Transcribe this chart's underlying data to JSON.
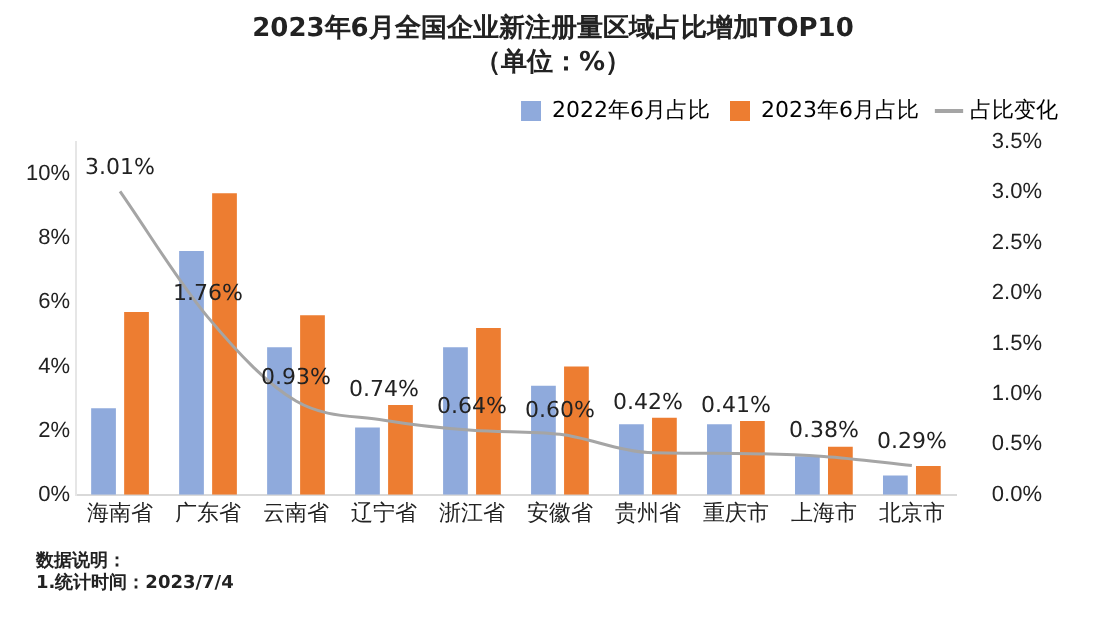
{
  "chart_data": {
    "type": "bar",
    "title": "2023年6月全国企业新注册量区域占比增加TOP10",
    "subtitle": "（单位：%）",
    "categories": [
      "海南省",
      "广东省",
      "云南省",
      "辽宁省",
      "浙江省",
      "安徽省",
      "贵州省",
      "重庆市",
      "上海市",
      "北京市"
    ],
    "series": [
      {
        "name": "2022年6月占比",
        "color": "#8faadc",
        "values": [
          2.7,
          7.6,
          4.6,
          2.1,
          4.6,
          3.4,
          2.2,
          2.2,
          1.2,
          0.6
        ]
      },
      {
        "name": "2023年6月占比",
        "color": "#ed7d31",
        "values": [
          5.7,
          9.4,
          5.6,
          2.8,
          5.2,
          4.0,
          2.4,
          2.3,
          1.5,
          0.9
        ]
      },
      {
        "name": "占比变化",
        "type": "line",
        "axis": "y2",
        "color": "#a5a5a5",
        "marker": "none",
        "values": [
          3.01,
          1.76,
          0.93,
          0.74,
          0.64,
          0.6,
          0.42,
          0.41,
          0.38,
          0.29
        ],
        "value_labels": [
          "3.01%",
          "1.76%",
          "0.93%",
          "0.74%",
          "0.64%",
          "0.60%",
          "0.42%",
          "0.41%",
          "0.38%",
          "0.29%"
        ]
      }
    ],
    "ylim": [
      0,
      11
    ],
    "yticks": [
      {
        "value": 0,
        "label": "0%"
      },
      {
        "value": 2,
        "label": "2%"
      },
      {
        "value": 4,
        "label": "4%"
      },
      {
        "value": 6,
        "label": "6%"
      },
      {
        "value": 8,
        "label": "8%"
      },
      {
        "value": 10,
        "label": "10%"
      }
    ],
    "y2lim": [
      0,
      3.5
    ],
    "y2ticks": [
      {
        "value": 0,
        "label": "0.0%"
      },
      {
        "value": 0.5,
        "label": "0.5%"
      },
      {
        "value": 1,
        "label": "1.0%"
      },
      {
        "value": 1.5,
        "label": "1.5%"
      },
      {
        "value": 2,
        "label": "2.0%"
      },
      {
        "value": 2.5,
        "label": "2.5%"
      },
      {
        "value": 3,
        "label": "3.0%"
      },
      {
        "value": 3.5,
        "label": "3.5%"
      }
    ],
    "grid": false,
    "legend": "top right",
    "annotations": [
      "数据说明：",
      "1.统计时间：2023/7/4"
    ]
  }
}
